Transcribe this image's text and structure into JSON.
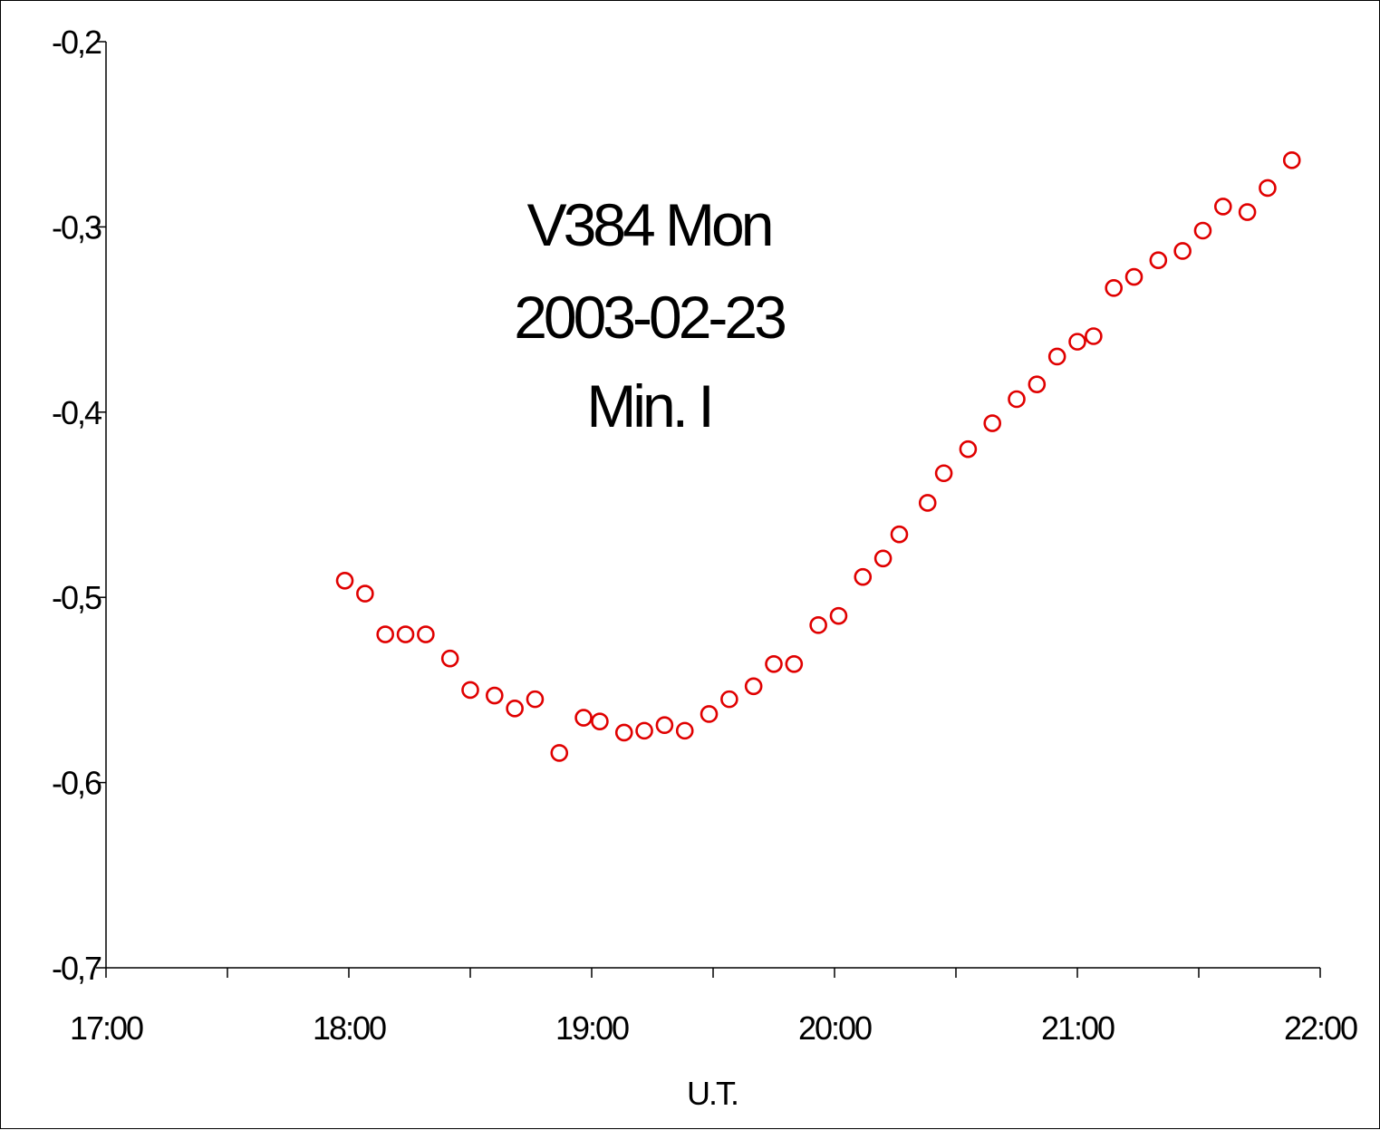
{
  "chart_data": {
    "type": "scatter",
    "title_lines": [
      "V384 Mon",
      "2003-02-23",
      "Min. I"
    ],
    "xlabel": "U.T.",
    "ylabel": "",
    "xlim": [
      "17:00",
      "22:00"
    ],
    "ylim": [
      -0.7,
      -0.2
    ],
    "x_ticks": [
      "17:00",
      "18:00",
      "19:00",
      "20:00",
      "21:00",
      "22:00"
    ],
    "y_ticks": [
      "-0,2",
      "-0,3",
      "-0,4",
      "-0,5",
      "-0,6",
      "-0,7"
    ],
    "y_tick_values": [
      -0.2,
      -0.3,
      -0.4,
      -0.5,
      -0.6,
      -0.7
    ],
    "grid": false,
    "legend": "none",
    "marker": "open-circle",
    "marker_color": "#e00000",
    "x": [
      "17:59",
      "18:04",
      "18:09",
      "18:14",
      "18:19",
      "18:25",
      "18:30",
      "18:36",
      "18:41",
      "18:46",
      "18:52",
      "18:58",
      "19:02",
      "19:08",
      "19:13",
      "19:18",
      "19:23",
      "19:29",
      "19:34",
      "19:40",
      "19:45",
      "19:50",
      "19:56",
      "20:01",
      "20:07",
      "20:12",
      "20:16",
      "20:23",
      "20:27",
      "20:33",
      "20:39",
      "20:45",
      "20:50",
      "20:55",
      "21:00",
      "21:04",
      "21:09",
      "21:14",
      "21:20",
      "21:26",
      "21:31",
      "21:36",
      "21:42",
      "21:47",
      "21:53"
    ],
    "y": [
      -0.491,
      -0.498,
      -0.52,
      -0.52,
      -0.52,
      -0.533,
      -0.55,
      -0.553,
      -0.56,
      -0.555,
      -0.584,
      -0.565,
      -0.567,
      -0.573,
      -0.572,
      -0.569,
      -0.572,
      -0.563,
      -0.555,
      -0.548,
      -0.536,
      -0.536,
      -0.515,
      -0.51,
      -0.489,
      -0.479,
      -0.466,
      -0.449,
      -0.433,
      -0.42,
      -0.406,
      -0.393,
      -0.385,
      -0.37,
      -0.362,
      -0.359,
      -0.333,
      -0.327,
      -0.318,
      -0.313,
      -0.302,
      -0.289,
      -0.292,
      -0.279,
      -0.264
    ]
  }
}
